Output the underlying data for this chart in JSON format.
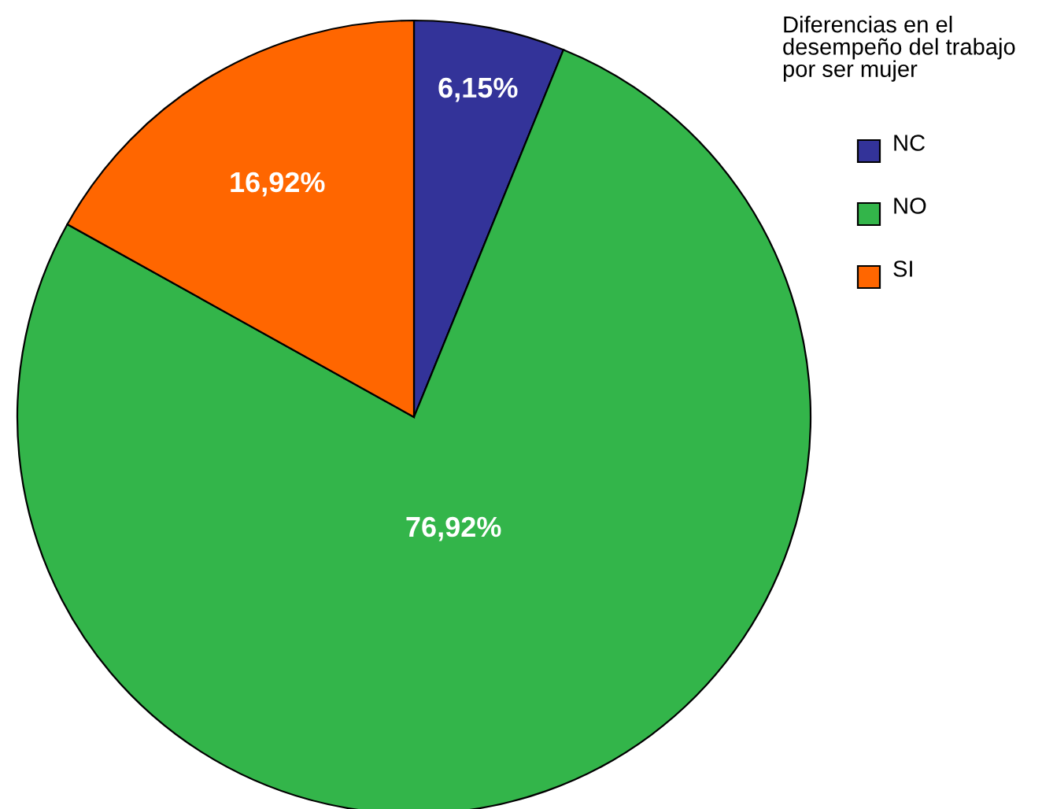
{
  "chart_data": {
    "type": "pie",
    "legend_title": "Diferencias en el\ndesempeño del trabajo\npor ser mujer",
    "categories": [
      "NC",
      "NO",
      "SI"
    ],
    "values": [
      6.15,
      76.92,
      16.92
    ],
    "value_labels": [
      "6,15%",
      "76,92%",
      "16,92%"
    ],
    "colors": [
      "#333399",
      "#33b54a",
      "#ff6600"
    ],
    "legend": "top right"
  }
}
